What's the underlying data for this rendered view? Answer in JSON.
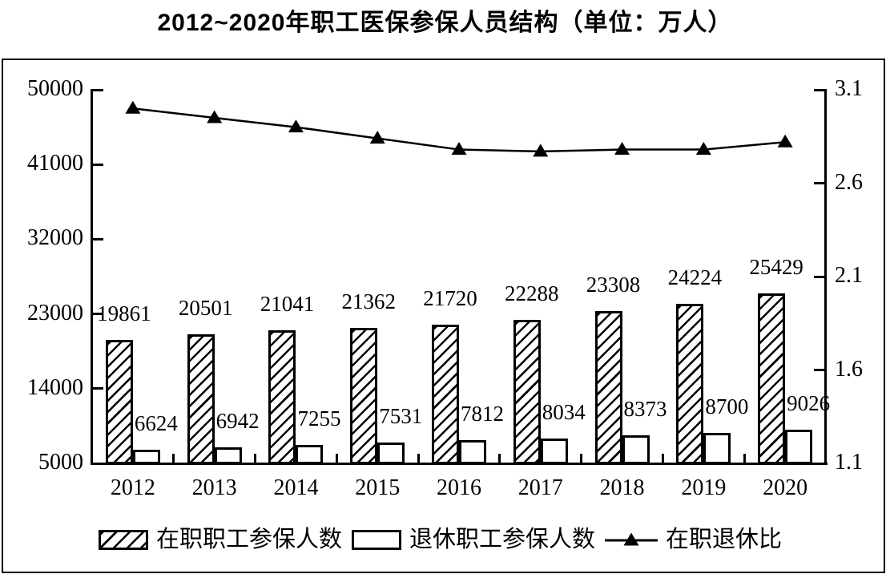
{
  "title": "2012~2020年职工医保参保人员结构（单位：万人）",
  "chart_data": {
    "type": "bar+line",
    "title": "2012~2020年职工医保参保人员结构（单位：万人）",
    "unit": "万人",
    "categories": [
      "2012",
      "2013",
      "2014",
      "2015",
      "2016",
      "2017",
      "2018",
      "2019",
      "2020"
    ],
    "series": [
      {
        "name": "在职职工参保人数",
        "type": "bar",
        "fill": "diagonal-hatch",
        "axis": "left",
        "values": [
          19861,
          20501,
          21041,
          21362,
          21720,
          22288,
          23308,
          24224,
          25429
        ]
      },
      {
        "name": "退休职工参保人数",
        "type": "bar",
        "fill": "white",
        "axis": "left",
        "values": [
          6624,
          6942,
          7255,
          7531,
          7812,
          8034,
          8373,
          8700,
          9026
        ]
      },
      {
        "name": "在职退休比",
        "type": "line",
        "marker": "filled-triangle",
        "axis": "right",
        "values": [
          3.0,
          2.95,
          2.9,
          2.84,
          2.78,
          2.77,
          2.78,
          2.78,
          2.82
        ]
      }
    ],
    "left_axis": {
      "min": 5000,
      "max": 50000,
      "ticks": [
        5000,
        14000,
        23000,
        32000,
        41000,
        50000
      ]
    },
    "right_axis": {
      "min": 1.1,
      "max": 3.1,
      "ticks": [
        1.1,
        1.6,
        2.1,
        2.6,
        3.1
      ]
    },
    "grid": "off",
    "legend_position": "bottom",
    "colors": {
      "ink": "#000000",
      "background": "#ffffff"
    }
  }
}
